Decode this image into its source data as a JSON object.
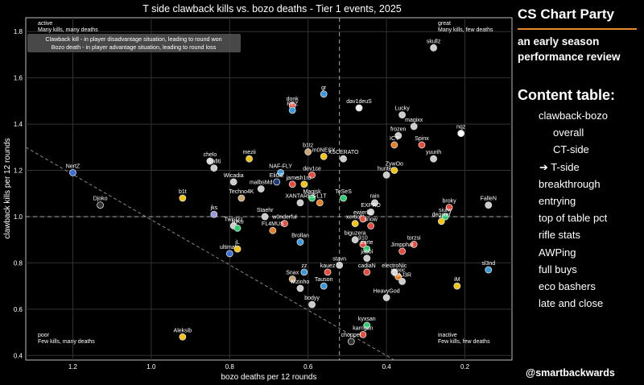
{
  "chart_data": {
    "type": "scatter",
    "title": "T side clawback kills vs. bozo deaths - Tier 1 events, 2025",
    "xlabel": "bozo deaths per 12 rounds",
    "ylabel": "clawback kills per 12 rounds",
    "xlim": [
      1.32,
      0.08
    ],
    "ylim": [
      0.38,
      1.86
    ],
    "x_inverted": true,
    "xticks": [
      1.2,
      1.0,
      0.8,
      0.6,
      0.4,
      0.2
    ],
    "yticks": [
      0.4,
      0.6,
      0.8,
      1.0,
      1.2,
      1.4,
      1.6,
      1.8
    ],
    "grid": true,
    "reference_lines": {
      "x": 0.52,
      "y": 1.0
    },
    "trend_line": [
      [
        1.32,
        1.3
      ],
      [
        0.38,
        0.38
      ]
    ],
    "quadrants": [
      {
        "title": "active",
        "text": "Many kills, many deaths",
        "corner": "top-left"
      },
      {
        "title": "great",
        "text": "Many kills, few deaths",
        "corner": "top-right"
      },
      {
        "title": "poor",
        "text": "Few kills, many deaths",
        "corner": "bottom-left"
      },
      {
        "title": "inactive",
        "text": "Few kills, few deaths",
        "corner": "bottom-right"
      }
    ],
    "legend_lines": [
      "Clawback kill - in player disadvantage situation, leading to round won",
      "Bozo death - in player advantage situation, leading to round loss"
    ],
    "legend_position": "top-left",
    "points": [
      {
        "label": "skullz",
        "x": 0.28,
        "y": 1.73,
        "color": "#cccccc"
      },
      {
        "label": "gr",
        "x": 0.56,
        "y": 1.53,
        "color": "#3a9ad9"
      },
      {
        "label": "dav1deuS",
        "x": 0.47,
        "y": 1.47,
        "color": "#eeeeee"
      },
      {
        "label": "donk",
        "x": 0.64,
        "y": 1.48,
        "color": "#e74c3c"
      },
      {
        "label": "REZ",
        "x": 0.64,
        "y": 1.46,
        "color": "#3a9ad9"
      },
      {
        "label": "Lucky",
        "x": 0.36,
        "y": 1.44,
        "color": "#cccccc"
      },
      {
        "label": "magixx",
        "x": 0.33,
        "y": 1.39,
        "color": "#cccccc"
      },
      {
        "label": "frozen",
        "x": 0.37,
        "y": 1.35,
        "color": "#cccccc"
      },
      {
        "label": "ICY",
        "x": 0.38,
        "y": 1.31,
        "color": "#e67e22"
      },
      {
        "label": "Spinx",
        "x": 0.31,
        "y": 1.31,
        "color": "#e74c3c"
      },
      {
        "label": "nqz",
        "x": 0.21,
        "y": 1.36,
        "color": "#ffffff"
      },
      {
        "label": "yuurih",
        "x": 0.28,
        "y": 1.25,
        "color": "#cccccc"
      },
      {
        "label": "b1tz",
        "x": 0.6,
        "y": 1.28,
        "color": "#cca570"
      },
      {
        "label": "m0NESY",
        "x": 0.56,
        "y": 1.26,
        "color": "#f1c40f"
      },
      {
        "label": "XSCERATO",
        "x": 0.51,
        "y": 1.25,
        "color": "#cccccc"
      },
      {
        "label": "chelo",
        "x": 0.85,
        "y": 1.24,
        "color": "#cccccc"
      },
      {
        "label": "mezii",
        "x": 0.75,
        "y": 1.25,
        "color": "#f1c40f"
      },
      {
        "label": "drafiti",
        "x": 0.84,
        "y": 1.21,
        "color": "#cccccc"
      },
      {
        "label": "hunter-",
        "x": 0.4,
        "y": 1.18,
        "color": "#cccccc"
      },
      {
        "label": "ZywOo",
        "x": 0.38,
        "y": 1.2,
        "color": "#f1c40f"
      },
      {
        "label": "NertZ",
        "x": 1.2,
        "y": 1.19,
        "color": "#3a6fd8"
      },
      {
        "label": "NAF-FLY",
        "x": 0.67,
        "y": 1.19,
        "color": "#3a9ad9"
      },
      {
        "label": "dev1ce",
        "x": 0.59,
        "y": 1.18,
        "color": "#e74c3c"
      },
      {
        "label": "EliGE",
        "x": 0.68,
        "y": 1.15,
        "color": "#1f3a7a"
      },
      {
        "label": "Wicadia",
        "x": 0.79,
        "y": 1.15,
        "color": "#cccccc"
      },
      {
        "label": "malbsMd",
        "x": 0.72,
        "y": 1.12,
        "color": "#cccccc"
      },
      {
        "label": "jame",
        "x": 0.64,
        "y": 1.14,
        "color": "#e74c3c"
      },
      {
        "label": "sh1ro",
        "x": 0.61,
        "y": 1.14,
        "color": "#f1c40f"
      },
      {
        "label": "Techno4K",
        "x": 0.77,
        "y": 1.08,
        "color": "#cca570"
      },
      {
        "label": "Magisk",
        "x": 0.59,
        "y": 1.08,
        "color": "#2ecc71"
      },
      {
        "label": "b1t",
        "x": 0.92,
        "y": 1.08,
        "color": "#f1c40f"
      },
      {
        "label": "TeSeS",
        "x": 0.51,
        "y": 1.08,
        "color": "#2ecc71"
      },
      {
        "label": "XANTARES",
        "x": 0.62,
        "y": 1.06,
        "color": "#cccccc"
      },
      {
        "label": "FL1T",
        "x": 0.57,
        "y": 1.06,
        "color": "#e67e22"
      },
      {
        "label": "Djoko",
        "x": 1.13,
        "y": 1.05,
        "color": "#333333"
      },
      {
        "label": "rain",
        "x": 0.43,
        "y": 1.06,
        "color": "#cccccc"
      },
      {
        "label": "broky",
        "x": 0.24,
        "y": 1.04,
        "color": "#e74c3c"
      },
      {
        "label": "FalleN",
        "x": 0.14,
        "y": 1.05,
        "color": "#cccccc"
      },
      {
        "label": "jks",
        "x": 0.84,
        "y": 1.01,
        "color": "#9999dd"
      },
      {
        "label": "Staehr",
        "x": 0.71,
        "y": 1.0,
        "color": "#cccccc"
      },
      {
        "label": "EXPRO",
        "x": 0.44,
        "y": 1.02,
        "color": "#cccccc"
      },
      {
        "label": "siuhy",
        "x": 0.25,
        "y": 1.0,
        "color": "#2ecc71"
      },
      {
        "label": "degster",
        "x": 0.26,
        "y": 0.98,
        "color": "#f1c40f"
      },
      {
        "label": "Twistzz",
        "x": 0.79,
        "y": 0.96,
        "color": "#cccccc"
      },
      {
        "label": "w0nderful",
        "x": 0.66,
        "y": 0.97,
        "color": "#e74c3c"
      },
      {
        "label": "xertioN",
        "x": 0.48,
        "y": 0.97,
        "color": "#f1c40f"
      },
      {
        "label": "ewjerkz",
        "x": 0.46,
        "y": 0.99,
        "color": "#e74c3c"
      },
      {
        "label": "snow",
        "x": 0.44,
        "y": 0.96,
        "color": "#e74c3c"
      },
      {
        "label": "FL4MUS",
        "x": 0.69,
        "y": 0.94,
        "color": "#e67e22"
      },
      {
        "label": "NiKo",
        "x": 0.78,
        "y": 0.95,
        "color": "#2ecc71"
      },
      {
        "label": "Brollan",
        "x": 0.62,
        "y": 0.89,
        "color": "#3a9ad9"
      },
      {
        "label": "biguzera",
        "x": 0.48,
        "y": 0.9,
        "color": "#cccccc"
      },
      {
        "label": "torzsi",
        "x": 0.33,
        "y": 0.88,
        "color": "#e74c3c"
      },
      {
        "label": "910",
        "x": 0.46,
        "y": 0.88,
        "color": "#e74c3c"
      },
      {
        "label": "ultimate",
        "x": 0.8,
        "y": 0.84,
        "color": "#3a6fd8"
      },
      {
        "label": "jL",
        "x": 0.78,
        "y": 0.86,
        "color": "#f1c40f"
      },
      {
        "label": "zorte",
        "x": 0.45,
        "y": 0.86,
        "color": "#2ecc71"
      },
      {
        "label": "Jimpphat",
        "x": 0.36,
        "y": 0.85,
        "color": "#e74c3c"
      },
      {
        "label": "jabbi",
        "x": 0.45,
        "y": 0.82,
        "color": "#cccccc"
      },
      {
        "label": "sl3nd",
        "x": 0.14,
        "y": 0.77,
        "color": "#3a9ad9"
      },
      {
        "label": "stavn",
        "x": 0.52,
        "y": 0.79,
        "color": "#cccccc"
      },
      {
        "label": "zz",
        "x": 0.61,
        "y": 0.76,
        "color": "#3a9ad9"
      },
      {
        "label": "kauez",
        "x": 0.55,
        "y": 0.76,
        "color": "#e74c3c"
      },
      {
        "label": "cadiaN",
        "x": 0.45,
        "y": 0.76,
        "color": "#e74c3c"
      },
      {
        "label": "electroNic",
        "x": 0.38,
        "y": 0.76,
        "color": "#cccccc"
      },
      {
        "label": "woxic",
        "x": 0.37,
        "y": 0.74,
        "color": "#e67e22"
      },
      {
        "label": "MAJ3R",
        "x": 0.36,
        "y": 0.72,
        "color": "#cccccc"
      },
      {
        "label": "iM",
        "x": 0.22,
        "y": 0.7,
        "color": "#f1c40f"
      },
      {
        "label": "Snax",
        "x": 0.64,
        "y": 0.73,
        "color": "#cca570"
      },
      {
        "label": "Tauson",
        "x": 0.56,
        "y": 0.7,
        "color": "#3a9ad9"
      },
      {
        "label": "Mzinho",
        "x": 0.62,
        "y": 0.69,
        "color": "#cccccc"
      },
      {
        "label": "HeavyGod",
        "x": 0.4,
        "y": 0.65,
        "color": "#cccccc"
      },
      {
        "label": "bodyy",
        "x": 0.59,
        "y": 0.62,
        "color": "#cccccc"
      },
      {
        "label": "kyxsan",
        "x": 0.45,
        "y": 0.53,
        "color": "#2ecc71"
      },
      {
        "label": "karrigan",
        "x": 0.46,
        "y": 0.49,
        "color": "#e74c3c"
      },
      {
        "label": "Aleksib",
        "x": 0.92,
        "y": 0.48,
        "color": "#f1c40f"
      },
      {
        "label": "chopper",
        "x": 0.49,
        "y": 0.46,
        "color": "#333333"
      }
    ]
  },
  "sidebar": {
    "brand": "CS Chart Party",
    "subtitle": "an early season performance review",
    "toc_title": "Content table:",
    "items": [
      {
        "label": "clawback-bozo",
        "level": "top"
      },
      {
        "label": "overall",
        "level": "sub"
      },
      {
        "label": "CT-side",
        "level": "sub"
      },
      {
        "label": "➔ T-side",
        "level": "current"
      },
      {
        "label": "breakthrough",
        "level": "top"
      },
      {
        "label": "entrying",
        "level": "top"
      },
      {
        "label": "top of table pct",
        "level": "top"
      },
      {
        "label": "rifle stats",
        "level": "top"
      },
      {
        "label": "AWPing",
        "level": "top"
      },
      {
        "label": "full buys",
        "level": "top"
      },
      {
        "label": "eco bashers",
        "level": "top"
      },
      {
        "label": "late and close",
        "level": "top"
      }
    ],
    "handle": "@smartbackwards"
  }
}
